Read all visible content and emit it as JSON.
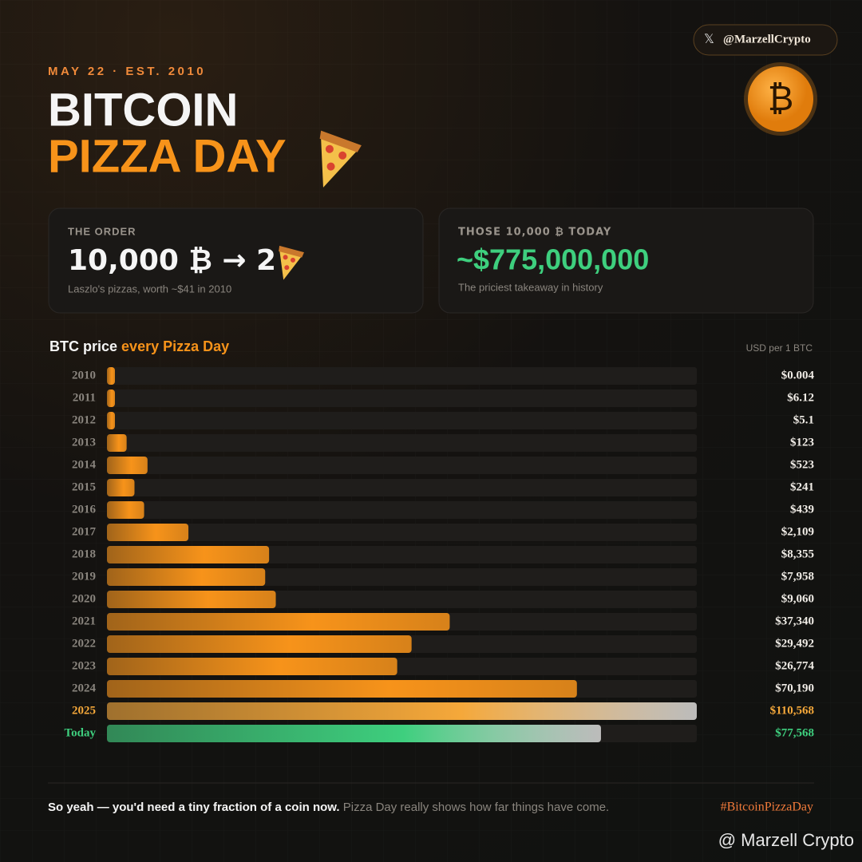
{
  "header": {
    "eyebrow": "MAY 22 · EST. 2010",
    "title_line1": "BITCOIN",
    "title_line2": "PIZZA DAY",
    "handle": "@MarzellCrypto"
  },
  "cards": [
    {
      "label": "THE ORDER",
      "value": "10,000 ₿ → 2",
      "note": "Laszlo's pizzas, worth ~$41 in 2010"
    },
    {
      "label": "THOSE 10,000 ₿ TODAY",
      "value": "~$775,000,000",
      "note": "The priciest takeaway in history"
    }
  ],
  "chart_data": {
    "type": "bar",
    "orientation": "horizontal",
    "title": "BTC price",
    "title_highlight": "every Pizza Day",
    "unit_label": "USD per 1 BTC",
    "categories": [
      "2010",
      "2011",
      "2012",
      "2013",
      "2014",
      "2015",
      "2016",
      "2017",
      "2018",
      "2019",
      "2020",
      "2021",
      "2022",
      "2023",
      "2024",
      "2025",
      "Today"
    ],
    "values": [
      0.004,
      6.12,
      5.1,
      123,
      523,
      241,
      439,
      2109,
      8355,
      7958,
      9060,
      37340,
      29492,
      26774,
      70190,
      110568,
      77568
    ],
    "value_labels": [
      "$0.004",
      "$6.12",
      "$5.1",
      "$123",
      "$523",
      "$241",
      "$439",
      "$2,109",
      "$8,355",
      "$7,958",
      "$9,060",
      "$37,340",
      "$29,492",
      "$26,774",
      "$70,190",
      "$110,568",
      "$77,568"
    ],
    "color": "#f7931a",
    "colors": [
      "#f7931a",
      "#f7931a",
      "#f7931a",
      "#f7931a",
      "#f7931a",
      "#f7931a",
      "#f7931a",
      "#f7931a",
      "#f7931a",
      "#f7931a",
      "#f7931a",
      "#f7931a",
      "#f7931a",
      "#f7931a",
      "#f7931a",
      "#f5a83a",
      "#3ecf7e"
    ],
    "xlim": [
      0,
      110568
    ],
    "xscale": "sqrt"
  },
  "footer": {
    "bold": "So yeah — you'd need a tiny fraction of a coin now.",
    "light": "Pizza Day really shows how far things have come.",
    "hashtag": "#BitcoinPizzaDay",
    "watermark": "@ Marzell Crypto"
  }
}
